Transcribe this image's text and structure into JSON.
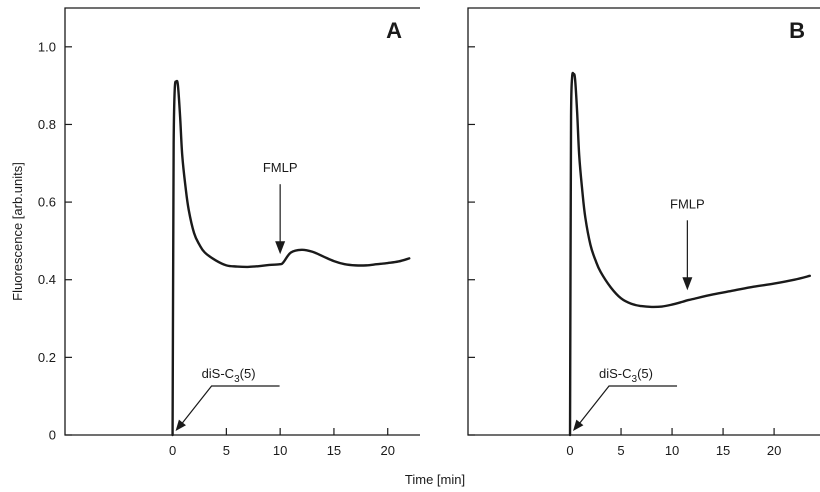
{
  "chart_data": [
    {
      "type": "line",
      "panel_label": "A",
      "ylabel": "Fluorescence [arb.units]",
      "xlabel": "Time [min]",
      "x_ticks": [
        0,
        5,
        10,
        15,
        20
      ],
      "y_ticks": [
        0,
        0.2,
        0.4,
        0.6,
        0.8,
        1.0
      ],
      "y_tick_labels": [
        "0",
        "0.2",
        "0.4",
        "0.6",
        "0.8",
        "1.0"
      ],
      "xlim": [
        -10,
        23
      ],
      "ylim": [
        0,
        1.1
      ],
      "series": [
        {
          "x": [
            0,
            0.05,
            0.1,
            0.2,
            0.35,
            0.5,
            0.7,
            0.9,
            1.2,
            1.5,
            2,
            2.5,
            3,
            4,
            5,
            6,
            7,
            8,
            9,
            10,
            10.3,
            11,
            12,
            13,
            14,
            15,
            16,
            17,
            18,
            19,
            20,
            21,
            22
          ],
          "y": [
            0,
            0.4,
            0.75,
            0.89,
            0.91,
            0.9,
            0.82,
            0.72,
            0.64,
            0.58,
            0.52,
            0.49,
            0.47,
            0.45,
            0.437,
            0.434,
            0.433,
            0.435,
            0.438,
            0.44,
            0.445,
            0.47,
            0.477,
            0.472,
            0.46,
            0.448,
            0.44,
            0.437,
            0.437,
            0.44,
            0.443,
            0.447,
            0.455
          ]
        }
      ],
      "annotations": [
        {
          "label": "FMLP",
          "type": "arrow-down",
          "x": 10,
          "y": 0.44
        },
        {
          "label": "diS-C3(5)",
          "label_main": "diS-C",
          "label_sub": "3",
          "label_tail": "(5)",
          "type": "arrow-pointer",
          "x": 0,
          "y": 0
        }
      ]
    },
    {
      "type": "line",
      "panel_label": "B",
      "ylabel": "",
      "xlabel": "Time [min]",
      "x_ticks": [
        0,
        5,
        10,
        15,
        20
      ],
      "y_ticks": [
        0,
        0.2,
        0.4,
        0.6,
        0.8,
        1.0
      ],
      "y_tick_labels": [],
      "xlim": [
        -10,
        24.5
      ],
      "ylim": [
        0,
        1.1
      ],
      "series": [
        {
          "x": [
            0,
            0.05,
            0.1,
            0.2,
            0.35,
            0.5,
            0.7,
            0.9,
            1.2,
            1.5,
            2,
            2.5,
            3,
            4,
            5,
            6,
            7,
            8,
            9,
            10,
            11,
            11.5,
            12,
            14,
            16,
            18,
            20,
            22,
            23.5
          ],
          "y": [
            0,
            0.45,
            0.82,
            0.92,
            0.93,
            0.915,
            0.83,
            0.72,
            0.63,
            0.56,
            0.49,
            0.45,
            0.42,
            0.38,
            0.352,
            0.338,
            0.332,
            0.33,
            0.331,
            0.336,
            0.343,
            0.347,
            0.35,
            0.362,
            0.372,
            0.382,
            0.39,
            0.4,
            0.41
          ]
        }
      ],
      "annotations": [
        {
          "label": "FMLP",
          "type": "arrow-down",
          "x": 11.5,
          "y": 0.347
        },
        {
          "label": "diS-C3(5)",
          "label_main": "diS-C",
          "label_sub": "3",
          "label_tail": "(5)",
          "type": "arrow-pointer",
          "x": 0,
          "y": 0
        }
      ]
    }
  ]
}
